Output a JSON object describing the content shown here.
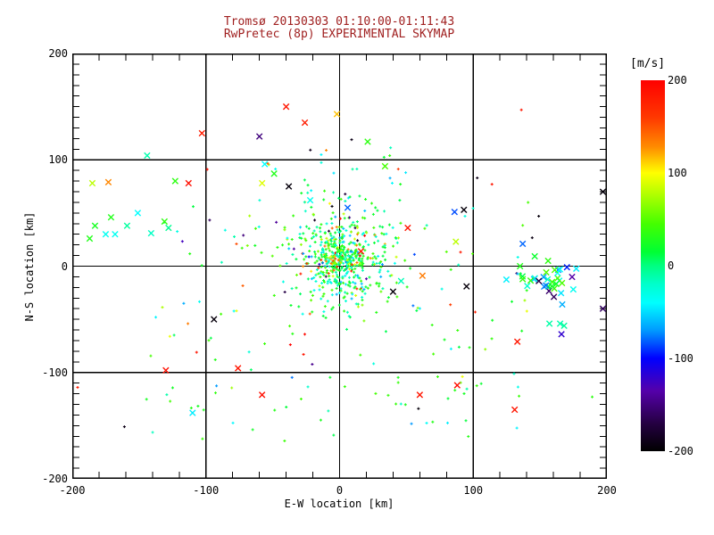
{
  "title": {
    "line1": "Tromsø 20130303 01:10:00-01:11:43",
    "line2": "RwPretec (8p) EXPERIMENTAL SKYMAP",
    "color": "#a02020"
  },
  "colorbar": {
    "label": "[m/s]",
    "ticks": [
      200,
      100,
      0,
      -100,
      -200
    ],
    "min": -200,
    "max": 200
  },
  "chart_data": {
    "type": "scatter",
    "title": "Tromsø 20130303 01:10:00-01:11:43 — RwPretec (8p) EXPERIMENTAL SKYMAP",
    "xlabel": "E-W location [km]",
    "ylabel": "N-S location [km]",
    "xlim": [
      -200,
      200
    ],
    "ylim": [
      -200,
      200
    ],
    "x_major_ticks": [
      -200,
      -100,
      0,
      100,
      200
    ],
    "y_major_ticks": [
      -200,
      -100,
      0,
      100,
      200
    ],
    "grid_lines": [
      -100,
      0,
      100
    ],
    "x_minor_step": 20,
    "y_minor_step": 10,
    "grid": "on",
    "legend_position": "colorbar-right",
    "color_value_units": "m/s",
    "colormap_stops": [
      [
        200,
        "#ff0000"
      ],
      [
        160,
        "#ff3800"
      ],
      [
        128,
        "#ff8c00"
      ],
      [
        100,
        "#ffff00"
      ],
      [
        75,
        "#aaff00"
      ],
      [
        45,
        "#44ff00"
      ],
      [
        15,
        "#00ff33"
      ],
      [
        0,
        "#00ff80"
      ],
      [
        -20,
        "#00ffcc"
      ],
      [
        -40,
        "#00ffff"
      ],
      [
        -70,
        "#0099ff"
      ],
      [
        -100,
        "#0000ff"
      ],
      [
        -135,
        "#5500aa"
      ],
      [
        -170,
        "#250042"
      ],
      [
        -200,
        "#000000"
      ]
    ],
    "points": [
      [
        -103,
        125,
        180,
        "x"
      ],
      [
        -144,
        104,
        -12,
        "x"
      ],
      [
        -185,
        78,
        80,
        "x"
      ],
      [
        -173,
        79,
        130,
        "x"
      ],
      [
        -123,
        80,
        35,
        "x"
      ],
      [
        -113,
        78,
        190,
        "x"
      ],
      [
        -151,
        50,
        -40,
        "x"
      ],
      [
        -171,
        46,
        30,
        "x"
      ],
      [
        -159,
        38,
        -8,
        "x"
      ],
      [
        -183,
        38,
        25,
        "x"
      ],
      [
        -131,
        42,
        35,
        "x"
      ],
      [
        -128,
        36,
        -5,
        "x"
      ],
      [
        -187,
        26,
        30,
        "x"
      ],
      [
        -175,
        30,
        -35,
        "x"
      ],
      [
        -168,
        30,
        -35,
        "x"
      ],
      [
        -141,
        31,
        -18,
        "x"
      ],
      [
        -94,
        -50,
        -195,
        "x"
      ],
      [
        -130,
        -98,
        190,
        "x"
      ],
      [
        -76,
        -96,
        185,
        "x"
      ],
      [
        -110,
        -138,
        -45,
        "x"
      ],
      [
        -40,
        150,
        185,
        "x"
      ],
      [
        -2,
        143,
        115,
        "x"
      ],
      [
        -26,
        135,
        180,
        "x"
      ],
      [
        -60,
        122,
        -150,
        "x"
      ],
      [
        21,
        117,
        35,
        "x"
      ],
      [
        -56,
        96,
        -40,
        "x"
      ],
      [
        34,
        94,
        45,
        "x"
      ],
      [
        -49,
        87,
        30,
        "x"
      ],
      [
        -58,
        78,
        90,
        "x"
      ],
      [
        -38,
        75,
        -195,
        "x"
      ],
      [
        -22,
        62,
        -35,
        "x"
      ],
      [
        6,
        55,
        -80,
        "x"
      ],
      [
        197,
        70,
        -195,
        "x"
      ],
      [
        86,
        51,
        -85,
        "x"
      ],
      [
        93,
        53,
        -195,
        "x"
      ],
      [
        51,
        36,
        185,
        "x"
      ],
      [
        87,
        23,
        80,
        "x"
      ],
      [
        62,
        -9,
        135,
        "x"
      ],
      [
        46,
        -14,
        -15,
        "x"
      ],
      [
        40,
        -24,
        -195,
        "x"
      ],
      [
        95,
        -19,
        -195,
        "x"
      ],
      [
        16,
        14,
        185,
        "x"
      ],
      [
        137,
        21,
        -80,
        "x"
      ],
      [
        135,
        0,
        30,
        "x"
      ],
      [
        156,
        5,
        35,
        "x"
      ],
      [
        197,
        -40,
        -160,
        "x"
      ],
      [
        157,
        -54,
        -10,
        "x"
      ],
      [
        165,
        -54,
        -12,
        "x"
      ],
      [
        168,
        -56,
        -8,
        "x"
      ],
      [
        166,
        -64,
        -120,
        "x"
      ],
      [
        133,
        -71,
        185,
        "x"
      ],
      [
        -58,
        -121,
        190,
        "x"
      ],
      [
        60,
        -121,
        185,
        "x"
      ],
      [
        88,
        -112,
        190,
        "x"
      ],
      [
        131,
        -135,
        185,
        "x"
      ],
      [
        -99,
        91,
        185,
        "s"
      ],
      [
        -72,
        29,
        -150,
        "s"
      ],
      [
        -73,
        17,
        40,
        "s"
      ],
      [
        -127,
        -66,
        95,
        "s"
      ],
      [
        -107,
        -81,
        185,
        "s"
      ],
      [
        -93,
        -88,
        30,
        "s"
      ],
      [
        -196,
        -114,
        180,
        "s"
      ],
      [
        -161,
        -151,
        -190,
        "s"
      ],
      [
        9,
        119,
        -190,
        "s"
      ],
      [
        -10,
        109,
        130,
        "s"
      ],
      [
        59,
        -134,
        -195,
        "s"
      ],
      [
        189,
        -123,
        35,
        "s"
      ],
      [
        136,
        147,
        185,
        "s"
      ],
      [
        103,
        83,
        -190,
        "s"
      ],
      [
        114,
        77,
        185,
        "s"
      ],
      [
        149,
        47,
        -195,
        "s"
      ],
      [
        -27,
        -83,
        185,
        "s"
      ]
    ],
    "generated_clusters": [
      {
        "name": "central-halo",
        "shape": "gauss",
        "count": 430,
        "cx": 2,
        "cy": 10,
        "sx": 20,
        "sy": 26,
        "marker": "s",
        "vmix": [
          [
            0.45,
            5,
            45
          ],
          [
            0.25,
            -5,
            -35
          ],
          [
            0.12,
            50,
            90
          ],
          [
            0.08,
            -40,
            -70
          ],
          [
            0.05,
            95,
            150
          ],
          [
            0.03,
            150,
            200
          ],
          [
            0.02,
            -90,
            -200
          ]
        ]
      },
      {
        "name": "central-core",
        "shape": "gauss",
        "count": 160,
        "cx": 1,
        "cy": 7,
        "sx": 8,
        "sy": 9,
        "marker": "s",
        "vmix": [
          [
            0.5,
            5,
            45
          ],
          [
            0.3,
            -5,
            -35
          ],
          [
            0.1,
            50,
            95
          ],
          [
            0.1,
            -40,
            -80
          ]
        ]
      },
      {
        "name": "hot-streak",
        "shape": "gauss",
        "count": 22,
        "cx": -4,
        "cy": 4,
        "sx": 8,
        "sy": 4,
        "marker": "s",
        "vmix": [
          [
            0.5,
            120,
            200
          ],
          [
            0.3,
            95,
            125
          ],
          [
            0.2,
            60,
            95
          ]
        ]
      },
      {
        "name": "field-sprinkle",
        "shape": "uniform",
        "count": 150,
        "x0": -145,
        "x1": 145,
        "y0": -165,
        "y1": 60,
        "marker": "s",
        "vmix": [
          [
            0.55,
            5,
            50
          ],
          [
            0.25,
            -10,
            -45
          ],
          [
            0.08,
            55,
            95
          ],
          [
            0.05,
            -50,
            -90
          ],
          [
            0.04,
            120,
            200
          ],
          [
            0.03,
            -120,
            -200
          ]
        ]
      },
      {
        "name": "east-cluster",
        "shape": "gauss",
        "count": 34,
        "cx": 158,
        "cy": -16,
        "sx": 11,
        "sy": 9,
        "marker": "x",
        "vmix": [
          [
            0.55,
            10,
            50
          ],
          [
            0.25,
            -20,
            -60
          ],
          [
            0.12,
            -60,
            -100
          ],
          [
            0.08,
            -120,
            -170
          ]
        ]
      },
      {
        "name": "upper-sprinkle",
        "shape": "uniform",
        "count": 20,
        "x0": -70,
        "x1": 50,
        "y0": 55,
        "y1": 115,
        "marker": "s",
        "vmix": [
          [
            0.4,
            5,
            50
          ],
          [
            0.25,
            -10,
            -50
          ],
          [
            0.15,
            60,
            110
          ],
          [
            0.1,
            120,
            200
          ],
          [
            0.1,
            -90,
            -200
          ]
        ]
      }
    ],
    "seed": 11
  }
}
